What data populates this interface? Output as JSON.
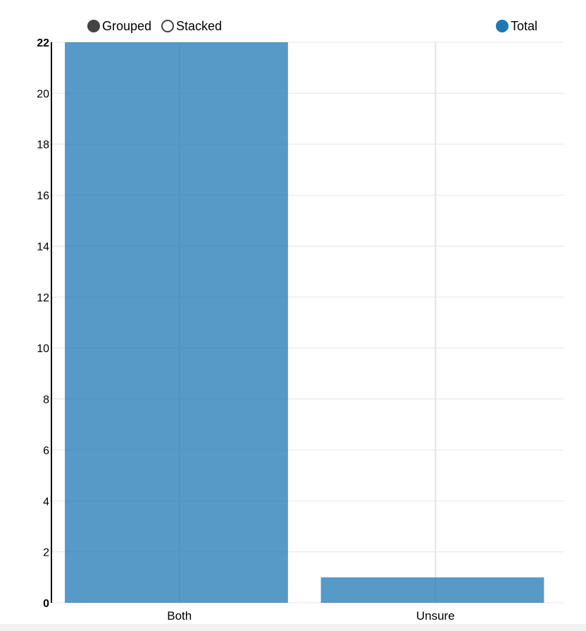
{
  "controls": {
    "grouped_label": "Grouped",
    "stacked_label": "Stacked",
    "selected": "Grouped"
  },
  "legend": {
    "entries": [
      {
        "label": "Total",
        "color": "#1f77b4"
      }
    ]
  },
  "colors": {
    "bar": "#1f77b4",
    "axis": "#000000",
    "grid": "#e5e5e5",
    "toggle_dot": "#444444"
  },
  "chart_data": {
    "type": "bar",
    "categories": [
      "Both",
      "Unsure"
    ],
    "series": [
      {
        "name": "Total",
        "values": [
          22,
          1
        ]
      }
    ],
    "yticks": [
      0,
      2,
      4,
      6,
      8,
      10,
      12,
      14,
      16,
      18,
      20,
      22
    ],
    "ylim": [
      0,
      22
    ],
    "grid": true,
    "legend_position": "top-right"
  }
}
